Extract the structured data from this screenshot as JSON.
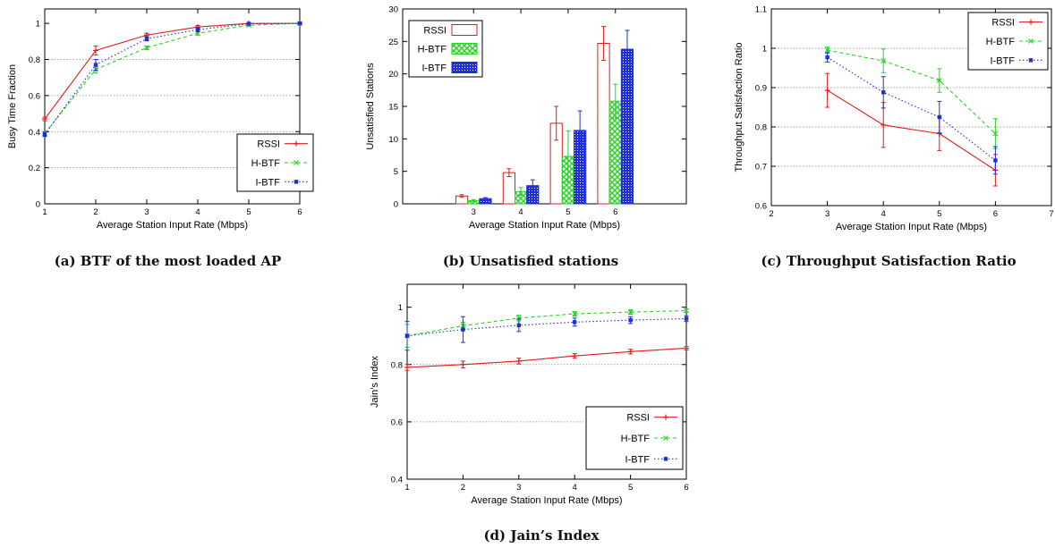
{
  "captions": {
    "a": "(a) BTF of the most loaded AP",
    "b": "(b) Unsatisfied stations",
    "c": "(c) Throughput Satisfaction Ratio",
    "d": "(d) Jain’s Index"
  },
  "colors": {
    "RSSI": "#e41a1c",
    "H-BTF": "#27d327",
    "I-BTF": "#1f2fd6"
  },
  "chart_data": [
    {
      "id": "a",
      "type": "line",
      "title": "",
      "xlabel": "Average Station Input Rate (Mbps)",
      "ylabel": "Busy Time Fraction",
      "xlim": [
        1,
        6
      ],
      "ylim": [
        0,
        1.08
      ],
      "xticks": [
        1,
        2,
        3,
        4,
        5,
        6
      ],
      "yticks": [
        0,
        0.2,
        0.4,
        0.6,
        0.8,
        1
      ],
      "ytick_labels": [
        "0",
        "0.2",
        "0.4",
        "0.6",
        "0.8",
        "1"
      ],
      "grid": "horizontal-dotted",
      "legend_position": "bottom-right",
      "x": [
        1,
        2,
        3,
        4,
        5,
        6
      ],
      "series": [
        {
          "name": "RSSI",
          "values": [
            0.47,
            0.85,
            0.935,
            0.98,
            1.0,
            1.0
          ],
          "err": [
            0.01,
            0.025,
            0.01,
            0.008,
            0.004,
            0.003
          ]
        },
        {
          "name": "H-BTF",
          "values": [
            0.39,
            0.745,
            0.865,
            0.945,
            0.99,
            1.0
          ],
          "err": [
            0.01,
            0.02,
            0.01,
            0.01,
            0.005,
            0.003
          ]
        },
        {
          "name": "I-BTF",
          "values": [
            0.385,
            0.77,
            0.915,
            0.965,
            0.998,
            1.0
          ],
          "err": [
            0.012,
            0.03,
            0.012,
            0.012,
            0.004,
            0.003
          ]
        }
      ]
    },
    {
      "id": "b",
      "type": "bar",
      "title": "",
      "xlabel": "Average Station Input Rate (Mbps)",
      "ylabel": "Unsatisfied Stations",
      "xlim": [
        1.5,
        7.5
      ],
      "ylim": [
        0,
        30
      ],
      "xticks": [
        3,
        4,
        5,
        6
      ],
      "yticks": [
        0,
        5,
        10,
        15,
        20,
        25,
        30
      ],
      "ytick_labels": [
        "0",
        "5",
        "10",
        "15",
        "20",
        "25",
        "30"
      ],
      "grid": "none",
      "legend_position": "top-left",
      "categories": [
        "3",
        "4",
        "5",
        "6"
      ],
      "series": [
        {
          "name": "RSSI",
          "values": [
            1.2,
            4.8,
            12.4,
            24.7
          ],
          "err": [
            0.2,
            0.6,
            2.6,
            2.6
          ]
        },
        {
          "name": "H-BTF",
          "values": [
            0.5,
            1.9,
            7.3,
            15.8
          ],
          "err": [
            0.15,
            0.6,
            3.9,
            2.6
          ]
        },
        {
          "name": "I-BTF",
          "values": [
            0.8,
            2.8,
            11.3,
            23.8
          ],
          "err": [
            0.15,
            0.9,
            3.0,
            2.9
          ]
        }
      ]
    },
    {
      "id": "c",
      "type": "line",
      "title": "",
      "xlabel": "Average Station Input Rate (Mbps)",
      "ylabel": "Throughput Satisfaction Ratio",
      "xlim": [
        2,
        7
      ],
      "ylim": [
        0.6,
        1.1
      ],
      "xticks": [
        2,
        3,
        4,
        5,
        6,
        7
      ],
      "yticks": [
        0.6,
        0.7,
        0.8,
        0.9,
        1.0,
        1.1
      ],
      "ytick_labels": [
        "0.6",
        "0.7",
        "0.8",
        "0.9",
        "1",
        "1.1"
      ],
      "grid": "horizontal-dotted",
      "legend_position": "top-right",
      "x": [
        3,
        4,
        5,
        6
      ],
      "series": [
        {
          "name": "RSSI",
          "values": [
            0.893,
            0.805,
            0.783,
            0.69
          ],
          "err": [
            0.043,
            0.057,
            0.043,
            0.04
          ]
        },
        {
          "name": "H-BTF",
          "values": [
            0.995,
            0.968,
            0.918,
            0.783
          ],
          "err": [
            0.008,
            0.03,
            0.03,
            0.038
          ]
        },
        {
          "name": "I-BTF",
          "values": [
            0.977,
            0.888,
            0.825,
            0.715
          ],
          "err": [
            0.012,
            0.04,
            0.04,
            0.035
          ]
        }
      ]
    },
    {
      "id": "d",
      "type": "line",
      "title": "",
      "xlabel": "Average Station Input Rate (Mbps)",
      "ylabel": "Jain’s Index",
      "xlim": [
        1,
        6
      ],
      "ylim": [
        0.4,
        1.08
      ],
      "xticks": [
        1,
        2,
        3,
        4,
        5,
        6
      ],
      "yticks": [
        0.4,
        0.6,
        0.8,
        1.0
      ],
      "ytick_labels": [
        "0.4",
        "0.6",
        "0.8",
        "1"
      ],
      "grid": "horizontal-dotted",
      "legend_position": "bottom-right",
      "x": [
        1,
        2,
        3,
        4,
        5,
        6
      ],
      "series": [
        {
          "name": "RSSI",
          "values": [
            0.79,
            0.8,
            0.812,
            0.83,
            0.845,
            0.857
          ],
          "err": [
            0.01,
            0.012,
            0.01,
            0.008,
            0.008,
            0.006
          ]
        },
        {
          "name": "H-BTF",
          "values": [
            0.9,
            0.935,
            0.962,
            0.977,
            0.983,
            0.988
          ],
          "err": [
            0.04,
            0.012,
            0.01,
            0.008,
            0.008,
            0.006
          ]
        },
        {
          "name": "I-BTF",
          "values": [
            0.9,
            0.922,
            0.937,
            0.948,
            0.955,
            0.96
          ],
          "err": [
            0.05,
            0.045,
            0.022,
            0.014,
            0.012,
            0.01
          ]
        }
      ]
    }
  ]
}
